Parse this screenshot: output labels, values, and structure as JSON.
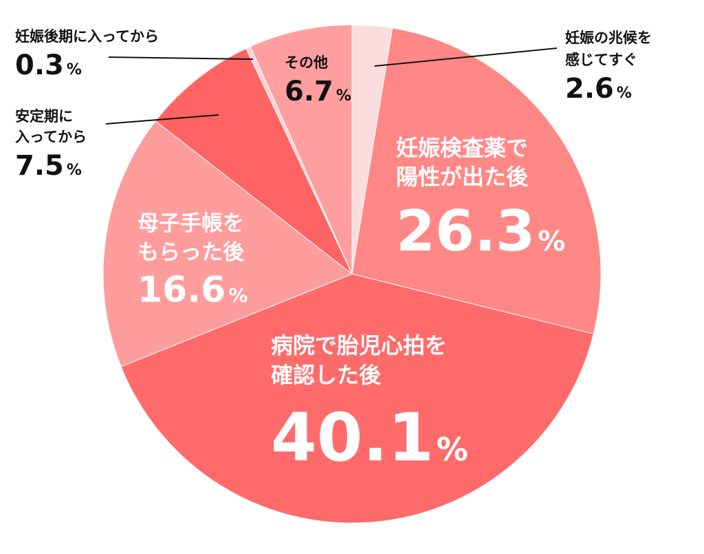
{
  "chart_data": {
    "type": "pie",
    "start_angle_deg": 0,
    "direction": "clockwise",
    "slices": [
      {
        "label_lines": [
          "妊娠の兆候を",
          "感じてすぐ"
        ],
        "value": 2.6,
        "value_text": "2.6",
        "unit": "%",
        "color": "#fcdcdc",
        "label_placement": "outside",
        "label_color": "#111111"
      },
      {
        "label_lines": [
          "妊娠検査薬で",
          "陽性が出た後"
        ],
        "value": 26.3,
        "value_text": "26.3",
        "unit": "%",
        "color": "#ff8785",
        "label_placement": "inside",
        "label_color": "#ffffff"
      },
      {
        "label_lines": [
          "病院で胎児心拍を",
          "確認した後"
        ],
        "value": 40.1,
        "value_text": "40.1",
        "unit": "%",
        "color": "#ff6b6b",
        "label_placement": "inside",
        "label_color": "#ffffff"
      },
      {
        "label_lines": [
          "母子手帳を",
          "もらった後"
        ],
        "value": 16.6,
        "value_text": "16.6",
        "unit": "%",
        "color": "#ff9c9c",
        "label_placement": "inside",
        "label_color": "#ffffff"
      },
      {
        "label_lines": [
          "安定期に",
          "入ってから"
        ],
        "value": 7.5,
        "value_text": "7.5",
        "unit": "%",
        "color": "#ff6464",
        "label_placement": "outside",
        "label_color": "#111111"
      },
      {
        "label_lines": [
          "妊娠後期に入ってから"
        ],
        "value": 0.3,
        "value_text": "0.3",
        "unit": "%",
        "color": "#fcd2d2",
        "label_placement": "outside",
        "label_color": "#111111"
      },
      {
        "label_lines": [
          "その他"
        ],
        "value": 6.7,
        "value_text": "6.7",
        "unit": "%",
        "color": "#ff9e9e",
        "label_placement": "inside",
        "label_color": "#111111"
      }
    ]
  }
}
